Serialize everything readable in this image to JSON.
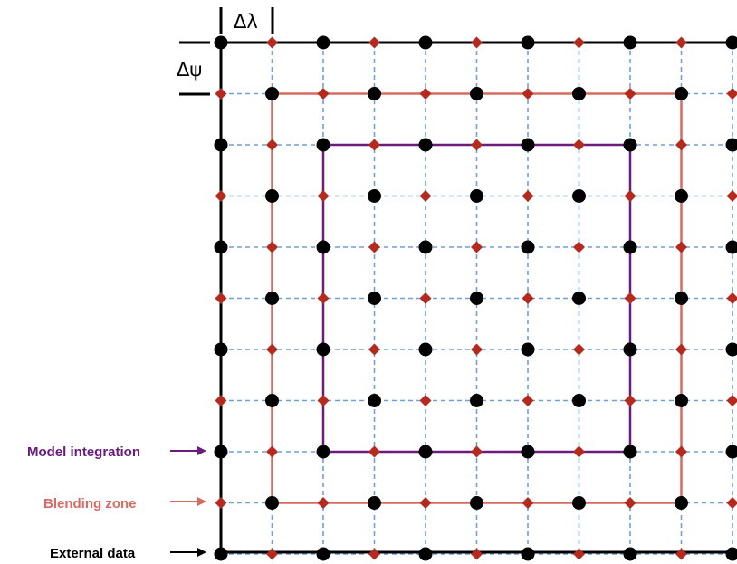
{
  "labels": {
    "delta_lambda": "Δλ",
    "delta_psi": "Δψ"
  },
  "legend": [
    {
      "id": "model",
      "text": "Model integration",
      "color": "#6a1b7d"
    },
    {
      "id": "blend",
      "text": "Blending zone",
      "color": "#d66b62"
    },
    {
      "id": "external",
      "text": "External data",
      "color": "#000000"
    }
  ],
  "colors": {
    "grid_line": "#6fa0d8",
    "black_node": "#000000",
    "red_node": "#b52a1f",
    "outer_border": "#000000",
    "blending_border": "#d66b62",
    "model_border": "#6a1b7d"
  }
}
